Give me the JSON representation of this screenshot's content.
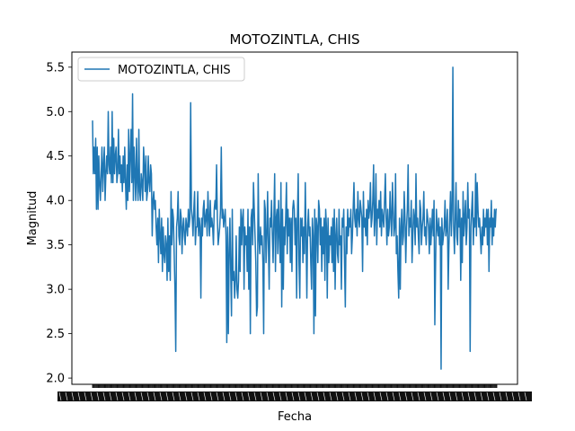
{
  "chart_data": {
    "type": "line",
    "title": "MOTOZINTLA, CHIS",
    "xlabel": "Fecha",
    "ylabel": "Magnitud",
    "ylim": [
      1.93,
      5.67
    ],
    "yticks": [
      2.0,
      2.5,
      3.0,
      3.5,
      4.0,
      4.5,
      5.0,
      5.5
    ],
    "ytick_labels": [
      "2.0",
      "2.5",
      "3.0",
      "3.5",
      "4.0",
      "4.5",
      "5.0",
      "5.5"
    ],
    "xtick_labels_note": "x-axis tick labels are overlapping dates rendered illegibly",
    "legend": {
      "position": "top-left",
      "entries": [
        "MOTOZINTLA, CHIS"
      ]
    },
    "grid": false,
    "color": "#1f77b4",
    "series": [
      {
        "name": "MOTOZINTLA, CHIS",
        "values": [
          4.9,
          4.3,
          4.6,
          4.3,
          4.7,
          3.9,
          4.6,
          3.9,
          4.5,
          4.2,
          4.0,
          4.3,
          4.6,
          4.1,
          4.4,
          4.6,
          4.0,
          4.3,
          4.5,
          4.3,
          5.0,
          4.4,
          4.3,
          4.6,
          4.2,
          5.0,
          4.2,
          4.7,
          4.3,
          4.5,
          4.6,
          4.2,
          4.3,
          4.8,
          4.3,
          4.5,
          4.2,
          4.4,
          4.1,
          4.5,
          4.2,
          4.6,
          4.2,
          3.9,
          4.4,
          4.0,
          4.8,
          4.1,
          4.5,
          4.8,
          4.2,
          5.2,
          4.0,
          4.6,
          4.3,
          4.0,
          4.7,
          4.2,
          4.0,
          4.8,
          4.1,
          4.0,
          4.3,
          4.2,
          4.0,
          4.6,
          4.4,
          4.1,
          4.5,
          4.0,
          4.1,
          4.5,
          4.2,
          4.1,
          4.4,
          4.3,
          3.6,
          4.0,
          4.1,
          3.9,
          4.0,
          3.7,
          3.5,
          3.8,
          3.3,
          3.9,
          3.6,
          3.4,
          3.8,
          3.2,
          3.7,
          3.4,
          3.3,
          3.6,
          3.5,
          3.1,
          3.8,
          3.2,
          3.6,
          3.1,
          4.1,
          3.5,
          3.9,
          3.8,
          3.4,
          3.0,
          2.3,
          3.7,
          3.8,
          4.1,
          3.6,
          3.5,
          3.9,
          3.8,
          3.4,
          3.7,
          3.8,
          3.6,
          3.5,
          3.8,
          3.7,
          3.6,
          3.9,
          3.7,
          3.8,
          5.1,
          3.9,
          3.8,
          3.6,
          3.9,
          4.1,
          3.5,
          3.7,
          3.7,
          4.1,
          3.6,
          3.8,
          3.7,
          2.9,
          3.8,
          3.6,
          3.9,
          4.0,
          3.7,
          3.8,
          3.9,
          3.6,
          4.1,
          3.8,
          3.6,
          4.0,
          3.7,
          3.8,
          3.7,
          3.5,
          3.9,
          4.0,
          3.9,
          4.4,
          3.8,
          3.5,
          3.6,
          3.7,
          3.9,
          4.6,
          3.8,
          3.9,
          3.7,
          3.8,
          3.9,
          3.6,
          2.4,
          3.7,
          2.5,
          3.4,
          3.8,
          3.2,
          2.7,
          3.9,
          3.1,
          3.2,
          2.9,
          3.1,
          3.6,
          3.0,
          2.9,
          3.1,
          3.7,
          3.2,
          3.9,
          3.5,
          3.8,
          3.9,
          3.0,
          3.7,
          3.5,
          3.6,
          3.2,
          3.9,
          3.0,
          3.7,
          2.5,
          3.8,
          3.9,
          3.5,
          4.2,
          3.9,
          3.6,
          3.3,
          2.7,
          2.8,
          4.3,
          3.6,
          3.4,
          3.7,
          3.5,
          3.6,
          3.3,
          2.5,
          4.0,
          3.9,
          3.3,
          3.6,
          4.1,
          3.5,
          3.0,
          3.8,
          3.7,
          4.0,
          3.6,
          3.3,
          3.8,
          4.3,
          3.2,
          3.8,
          3.9,
          3.4,
          4.0,
          3.6,
          3.3,
          4.2,
          2.8,
          3.9,
          3.0,
          3.7,
          3.5,
          3.8,
          4.2,
          3.4,
          3.9,
          3.6,
          3.8,
          3.3,
          3.8,
          3.2,
          3.9,
          4.0,
          3.9,
          3.5,
          3.8,
          2.9,
          3.8,
          4.3,
          3.3,
          2.9,
          3.8,
          3.6,
          3.8,
          3.3,
          3.7,
          3.4,
          4.2,
          3.6,
          2.9,
          3.7,
          3.9,
          3.6,
          3.7,
          3.3,
          3.0,
          3.8,
          3.6,
          2.5,
          3.9,
          2.7,
          3.8,
          3.7,
          3.3,
          4.0,
          3.9,
          3.5,
          3.8,
          3.2,
          3.7,
          3.4,
          3.8,
          3.1,
          3.9,
          3.7,
          2.9,
          3.8,
          3.3,
          3.6,
          3.5,
          3.7,
          3.3,
          3.8,
          3.2,
          3.9,
          3.0,
          3.6,
          3.8,
          3.4,
          3.3,
          3.9,
          3.5,
          3.6,
          3.0,
          3.8,
          3.7,
          3.9,
          3.3,
          2.8,
          3.7,
          3.4,
          3.9,
          3.6,
          3.8,
          3.7,
          3.9,
          3.4,
          3.6,
          3.9,
          4.2,
          3.8,
          3.7,
          3.9,
          3.6,
          4.1,
          3.8,
          3.7,
          4.0,
          3.9,
          3.8,
          3.2,
          4.1,
          3.7,
          3.8,
          3.6,
          3.9,
          3.5,
          4.0,
          3.8,
          3.9,
          4.2,
          3.7,
          3.8,
          4.0,
          4.4,
          3.6,
          3.8,
          4.3,
          3.5,
          3.9,
          3.8,
          4.0,
          3.7,
          4.1,
          3.6,
          3.9,
          3.8,
          3.7,
          4.0,
          4.3,
          3.8,
          3.5,
          3.9,
          3.6,
          3.7,
          4.1,
          3.8,
          3.6,
          4.2,
          3.9,
          3.6,
          3.7,
          4.3,
          3.4,
          3.6,
          3.2,
          2.9,
          3.8,
          3.0,
          3.7,
          3.9,
          3.5,
          3.6,
          4.1,
          3.8,
          3.3,
          3.7,
          3.9,
          4.4,
          3.6,
          3.8,
          3.7,
          4.0,
          3.3,
          3.6,
          3.9,
          3.8,
          3.5,
          4.3,
          3.7,
          3.8,
          3.6,
          3.4,
          4.0,
          3.9,
          3.5,
          3.7,
          3.8,
          4.1,
          3.6,
          3.7,
          3.5,
          3.9,
          3.8,
          3.7,
          3.4,
          3.8,
          3.5,
          3.7,
          3.9,
          3.6,
          4.0,
          2.6,
          3.3,
          3.9,
          3.7,
          3.6,
          3.8,
          3.5,
          3.7,
          2.1,
          3.8,
          3.5,
          3.6,
          3.7,
          4.0,
          3.6,
          3.7,
          3.9,
          3.0,
          3.5,
          3.8,
          4.1,
          3.6,
          3.9,
          5.5,
          3.7,
          3.4,
          3.8,
          4.2,
          3.6,
          3.5,
          4.0,
          3.7,
          3.9,
          3.1,
          3.8,
          3.3,
          4.1,
          3.6,
          3.8,
          4.0,
          3.5,
          3.7,
          4.2,
          3.8,
          3.9,
          2.3,
          3.7,
          3.9,
          4.1,
          3.5,
          3.8,
          3.7,
          4.3,
          3.6,
          4.2,
          3.9,
          3.7,
          3.8,
          3.6,
          3.4,
          3.7,
          3.5,
          3.9,
          3.6,
          3.8,
          3.7,
          3.9,
          3.5,
          3.9,
          3.2,
          3.8,
          3.7,
          4.0,
          3.5,
          3.8,
          3.6,
          3.9,
          3.7,
          3.9,
          3.9
        ]
      }
    ]
  }
}
